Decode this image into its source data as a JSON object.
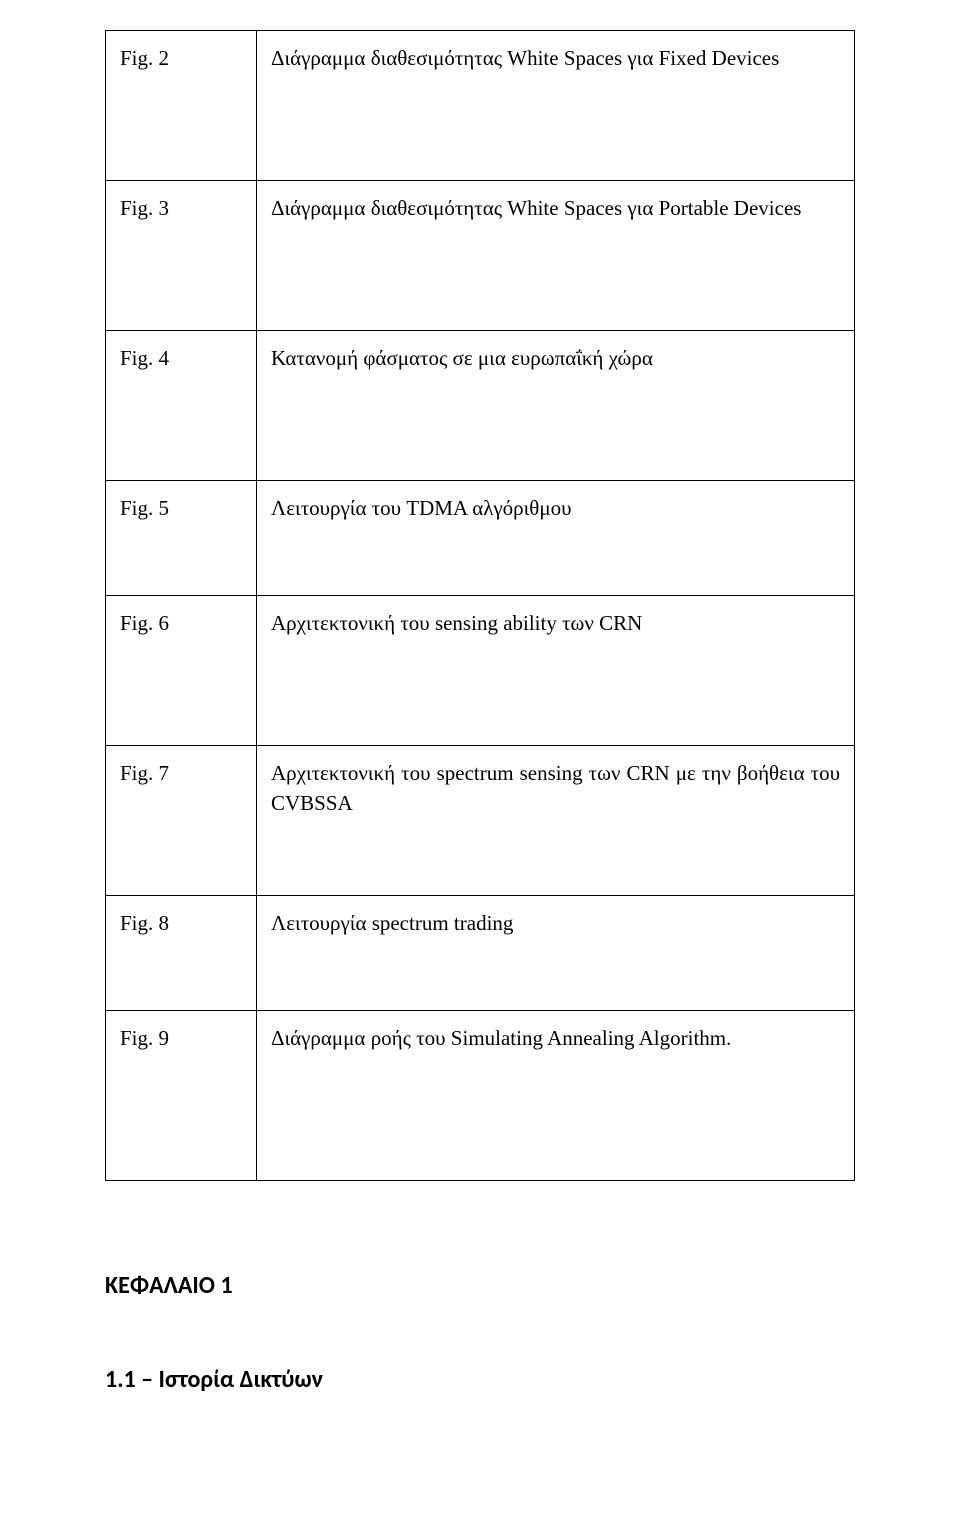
{
  "rows": [
    {
      "label": "Fig. 2",
      "desc": "Διάγραμμα διαθεσιμότητας White Spaces για Fixed Devices",
      "row_class": "row-med"
    },
    {
      "label": "Fig. 3",
      "desc": "Διάγραμμα διαθεσιμότητας White Spaces για Portable Devices",
      "row_class": "row-med"
    },
    {
      "label": "Fig. 4",
      "desc": "Κατανομή φάσματος σε μια ευρωπαΐκή χώρα",
      "row_class": "row-med"
    },
    {
      "label": "Fig. 5",
      "desc": "Λειτουργία του TDMA αλγόριθμου",
      "row_class": "row-short"
    },
    {
      "label": "Fig. 6",
      "desc": "Αρχιτεκτονική του sensing ability των CRN",
      "row_class": "row-med"
    },
    {
      "label": "Fig. 7",
      "desc": "Αρχιτεκτονική του spectrum sensing των CRN με την βοήθεια του CVBSSA",
      "row_class": "row-med"
    },
    {
      "label": "Fig. 8",
      "desc": "Λειτουργία spectrum trading",
      "row_class": "row-short"
    },
    {
      "label": "Fig. 9",
      "desc": "Διάγραμμα ροής του Simulating Annealing Algorithm.",
      "row_class": "row-tall"
    }
  ],
  "chapter_heading": "ΚΕΦΑΛΑΙΟ 1",
  "section_heading": "1.1 – Ιστορία Δικτύων"
}
